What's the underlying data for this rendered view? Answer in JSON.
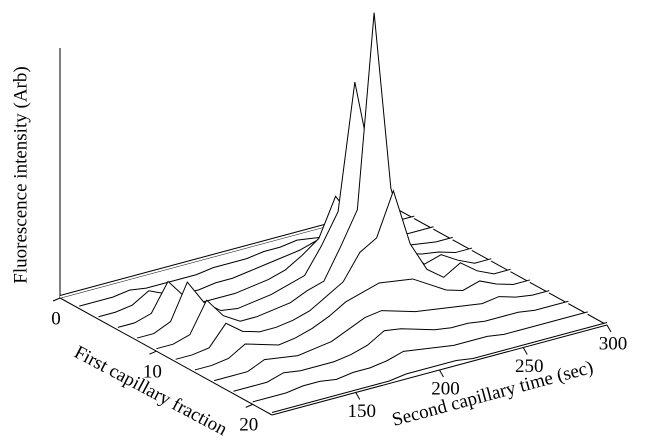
{
  "chart_data": {
    "type": "waterfall3d",
    "xlabel": "Second capillary time (sec)",
    "ylabel": "First capillary fraction",
    "zlabel": "Fluorescence intensity (Arb)",
    "color": "#000000",
    "x": [
      100,
      110,
      120,
      130,
      140,
      150,
      160,
      170,
      180,
      190,
      200,
      210,
      220,
      230,
      240,
      250,
      260,
      270,
      280,
      290,
      300
    ],
    "xlim": [
      100,
      300
    ],
    "xticks": [
      150,
      200,
      250,
      300
    ],
    "ylim": [
      0,
      22
    ],
    "yticks": [
      0,
      10,
      20
    ],
    "zlim": [
      0,
      100
    ],
    "depth": [
      0,
      2,
      4,
      6,
      8,
      10,
      12,
      14,
      16,
      18,
      20,
      22
    ],
    "series": [
      {
        "values": [
          1,
          1,
          1,
          1,
          1,
          1,
          1,
          1,
          1,
          1,
          1,
          1,
          1,
          1,
          1,
          1,
          1,
          1,
          1,
          1,
          1
        ]
      },
      {
        "values": [
          1,
          1,
          1,
          2,
          1,
          1,
          1,
          1,
          2,
          2,
          2,
          3,
          3,
          4,
          3,
          2,
          2,
          1,
          1,
          1,
          1
        ]
      },
      {
        "values": [
          1,
          1,
          2,
          6,
          3,
          1,
          1,
          2,
          2,
          3,
          4,
          5,
          6,
          8,
          7,
          4,
          3,
          2,
          1,
          1,
          1
        ]
      },
      {
        "values": [
          1,
          1,
          3,
          14,
          6,
          2,
          2,
          2,
          3,
          4,
          6,
          10,
          15,
          30,
          20,
          8,
          4,
          3,
          2,
          1,
          1
        ]
      },
      {
        "values": [
          1,
          1,
          4,
          18,
          8,
          3,
          2,
          3,
          4,
          6,
          8,
          18,
          30,
          80,
          45,
          15,
          6,
          4,
          3,
          1,
          1
        ]
      },
      {
        "values": [
          1,
          1,
          3,
          15,
          7,
          3,
          3,
          4,
          5,
          8,
          10,
          22,
          35,
          112,
          40,
          14,
          6,
          8,
          4,
          1,
          1
        ]
      },
      {
        "values": [
          1,
          1,
          2,
          10,
          5,
          3,
          3,
          4,
          6,
          10,
          14,
          24,
          28,
          45,
          22,
          10,
          5,
          9,
          4,
          1,
          1
        ]
      },
      {
        "values": [
          1,
          1,
          2,
          6,
          4,
          2,
          3,
          5,
          8,
          12,
          14,
          16,
          15,
          14,
          10,
          6,
          4,
          6,
          3,
          1,
          1
        ]
      },
      {
        "values": [
          1,
          1,
          1,
          4,
          3,
          2,
          3,
          4,
          7,
          10,
          11,
          9,
          7,
          6,
          5,
          4,
          3,
          4,
          2,
          1,
          1
        ]
      },
      {
        "values": [
          1,
          1,
          1,
          3,
          2,
          2,
          2,
          3,
          5,
          9,
          8,
          6,
          4,
          3,
          3,
          2,
          2,
          2,
          1,
          1,
          1
        ]
      },
      {
        "values": [
          1,
          1,
          1,
          2,
          2,
          1,
          2,
          2,
          3,
          5,
          4,
          3,
          2,
          2,
          2,
          1,
          1,
          1,
          1,
          1,
          1
        ]
      },
      {
        "values": [
          1,
          1,
          1,
          1,
          1,
          1,
          1,
          1,
          2,
          2,
          2,
          2,
          1,
          1,
          1,
          1,
          1,
          1,
          1,
          1,
          1
        ]
      }
    ]
  }
}
